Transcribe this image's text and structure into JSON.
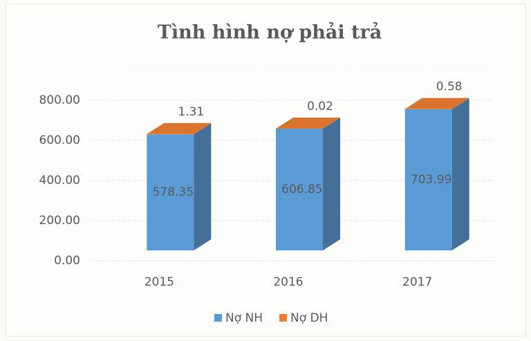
{
  "chart_data": {
    "type": "bar3d_stacked",
    "title": "Tình hình nợ phải trả",
    "categories": [
      "2015",
      "2016",
      "2017"
    ],
    "series": [
      {
        "name": "Nợ NH",
        "color": "#5b9bd5",
        "values": [
          578.35,
          606.85,
          703.99
        ]
      },
      {
        "name": "Nợ DH",
        "color": "#ed7d31",
        "values": [
          1.31,
          0.02,
          0.58
        ]
      }
    ],
    "ylim": [
      0,
      800
    ],
    "yticks": [
      {
        "value": 0,
        "label": "0.00"
      },
      {
        "value": 200,
        "label": "200.00"
      },
      {
        "value": 400,
        "label": "400.00"
      },
      {
        "value": 600,
        "label": "600.00"
      },
      {
        "value": 800,
        "label": "800.00"
      }
    ],
    "grid": true,
    "legend": "bottom"
  }
}
